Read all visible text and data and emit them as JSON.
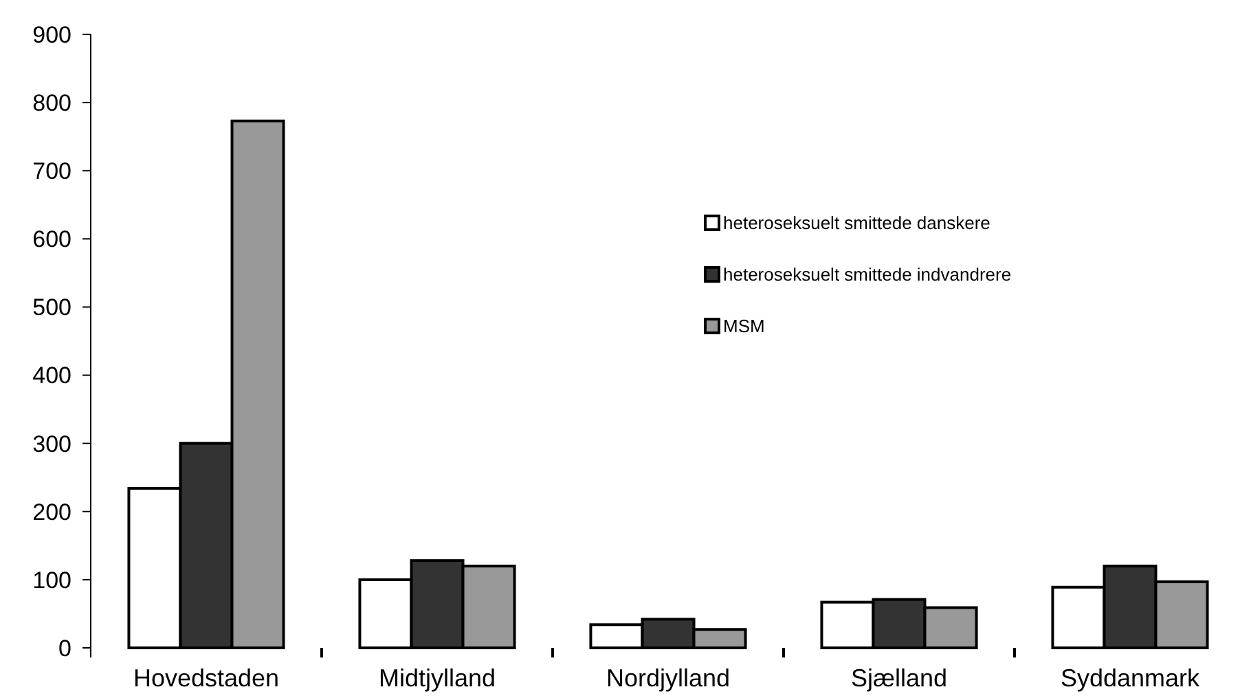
{
  "chart_data": {
    "type": "bar",
    "categories": [
      "Hovedstaden",
      "Midtjylland",
      "Nordjylland",
      "Sjælland",
      "Syddanmark"
    ],
    "series": [
      {
        "name": "heteroseksuelt smittede danskere",
        "color": "#ffffff",
        "values": [
          234,
          100,
          34,
          67,
          89
        ]
      },
      {
        "name": "heteroseksuelt smittede indvandrere",
        "color": "#333333",
        "values": [
          300,
          128,
          42,
          71,
          120
        ]
      },
      {
        "name": "MSM",
        "color": "#999999",
        "values": [
          773,
          120,
          27,
          59,
          97
        ]
      }
    ],
    "ylim": [
      0,
      900
    ],
    "yticks": [
      0,
      100,
      200,
      300,
      400,
      500,
      600,
      700,
      800,
      900
    ],
    "grid": false,
    "legend": "top right"
  }
}
